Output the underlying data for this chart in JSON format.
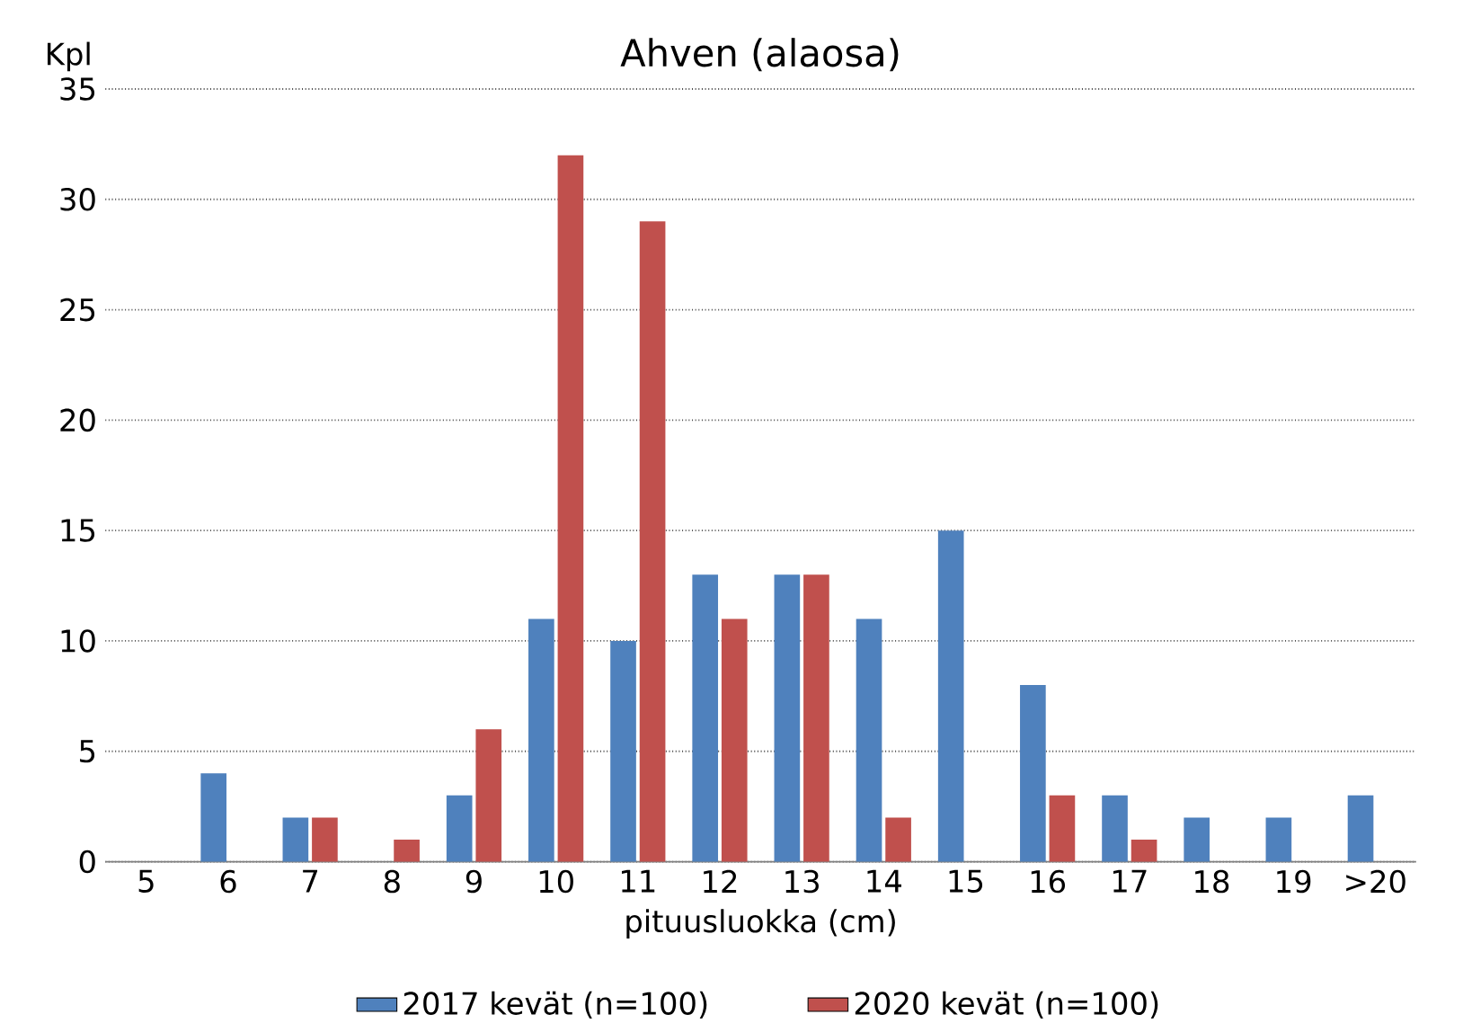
{
  "chart_data": {
    "type": "bar",
    "title": "Ahven (alaosa)",
    "xlabel": "pituusluokka (cm)",
    "ylabel": "Kpl",
    "categories": [
      "5",
      "6",
      "7",
      "8",
      "9",
      "10",
      "11",
      "12",
      "13",
      "14",
      "15",
      "16",
      "17",
      "18",
      "19",
      ">20"
    ],
    "series": [
      {
        "name": "2017 kevät (n=100)",
        "color": "#4f81bd",
        "values": [
          0,
          4,
          2,
          0,
          3,
          11,
          10,
          13,
          13,
          11,
          15,
          8,
          3,
          2,
          2,
          3
        ]
      },
      {
        "name": "2020 kevät (n=100)",
        "color": "#c0504d",
        "values": [
          0,
          0,
          2,
          1,
          6,
          32,
          29,
          11,
          13,
          2,
          0,
          3,
          1,
          0,
          0,
          0
        ]
      }
    ],
    "ylim": [
      0,
      35
    ],
    "yticks": [
      0,
      5,
      10,
      15,
      20,
      25,
      30,
      35
    ],
    "grid": "y",
    "legend": "bottom"
  }
}
